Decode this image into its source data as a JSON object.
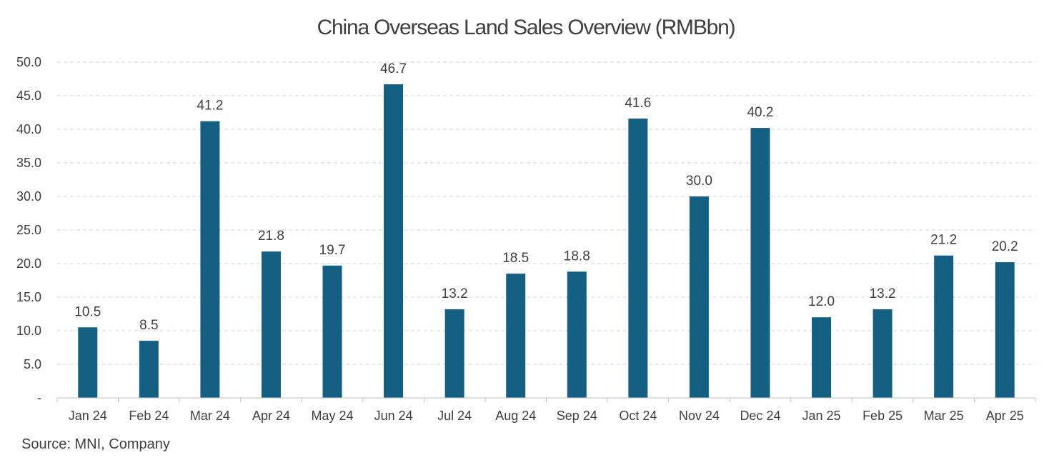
{
  "chart_data": {
    "type": "bar",
    "title": "China Overseas Land Sales Overview (RMBbn)",
    "xlabel": "",
    "ylabel": "",
    "categories": [
      "Jan 24",
      "Feb 24",
      "Mar 24",
      "Apr 24",
      "May 24",
      "Jun 24",
      "Jul 24",
      "Aug 24",
      "Sep 24",
      "Oct 24",
      "Nov 24",
      "Dec 24",
      "Jan 25",
      "Feb 25",
      "Mar 25",
      "Apr 25"
    ],
    "values": [
      10.5,
      8.5,
      41.2,
      21.8,
      19.7,
      46.7,
      13.2,
      18.5,
      18.8,
      41.6,
      30.0,
      40.2,
      12.0,
      13.2,
      21.2,
      20.2
    ],
    "data_labels": [
      "10.5",
      "8.5",
      "41.2",
      "21.8",
      "19.7",
      "46.7",
      "13.2",
      "18.5",
      "18.8",
      "41.6",
      "30.0",
      "40.2",
      "12.0",
      "13.2",
      "21.2",
      "20.2"
    ],
    "ylim": [
      0,
      50
    ],
    "yticks": [
      0,
      5,
      10,
      15,
      20,
      25,
      30,
      35,
      40,
      45,
      50
    ],
    "ytick_labels": [
      "-",
      "5.0",
      "10.0",
      "15.0",
      "20.0",
      "25.0",
      "30.0",
      "35.0",
      "40.0",
      "45.0",
      "50.0"
    ],
    "grid": true,
    "legend": "none",
    "bar_color": "#155f82",
    "source": "Source: MNI, Company"
  }
}
